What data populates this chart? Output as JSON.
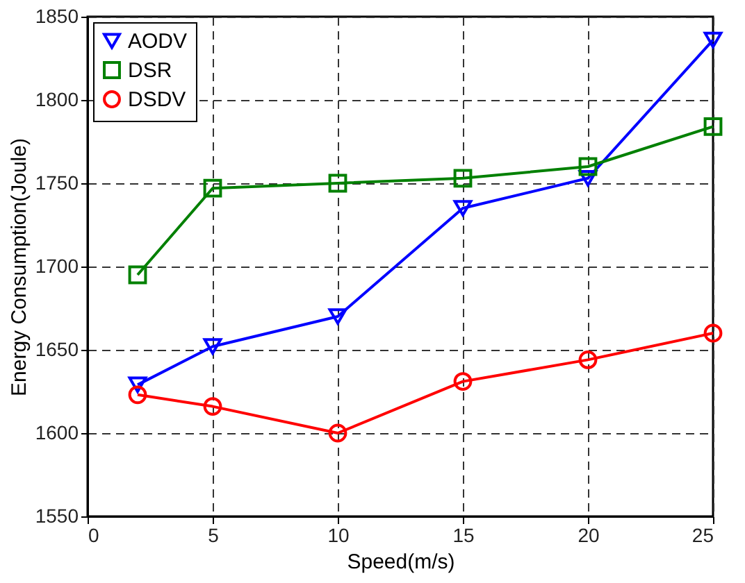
{
  "chart_data": {
    "type": "line",
    "xlabel": "Speed(m/s)",
    "ylabel": "Energy Consumption(Joule)",
    "x": [
      2,
      5,
      10,
      15,
      20,
      25
    ],
    "series": [
      {
        "name": "AODV",
        "color": "#0000ff",
        "marker": "triangle",
        "values": [
          1629,
          1652,
          1670,
          1735,
          1753,
          1836
        ]
      },
      {
        "name": "DSR",
        "color": "#008000",
        "marker": "square",
        "values": [
          1695,
          1747,
          1750,
          1753,
          1760,
          1784
        ]
      },
      {
        "name": "DSDV",
        "color": "#ff0000",
        "marker": "circle",
        "values": [
          1623,
          1616,
          1600,
          1631,
          1644,
          1660
        ]
      }
    ],
    "xlim": [
      0,
      25
    ],
    "xticks": [
      0,
      5,
      10,
      15,
      20,
      25
    ],
    "ylim": [
      1550,
      1850
    ],
    "yticks": [
      1550,
      1600,
      1650,
      1700,
      1750,
      1800,
      1850
    ],
    "grid": true,
    "legend": "top left",
    "line_style": "solid"
  }
}
